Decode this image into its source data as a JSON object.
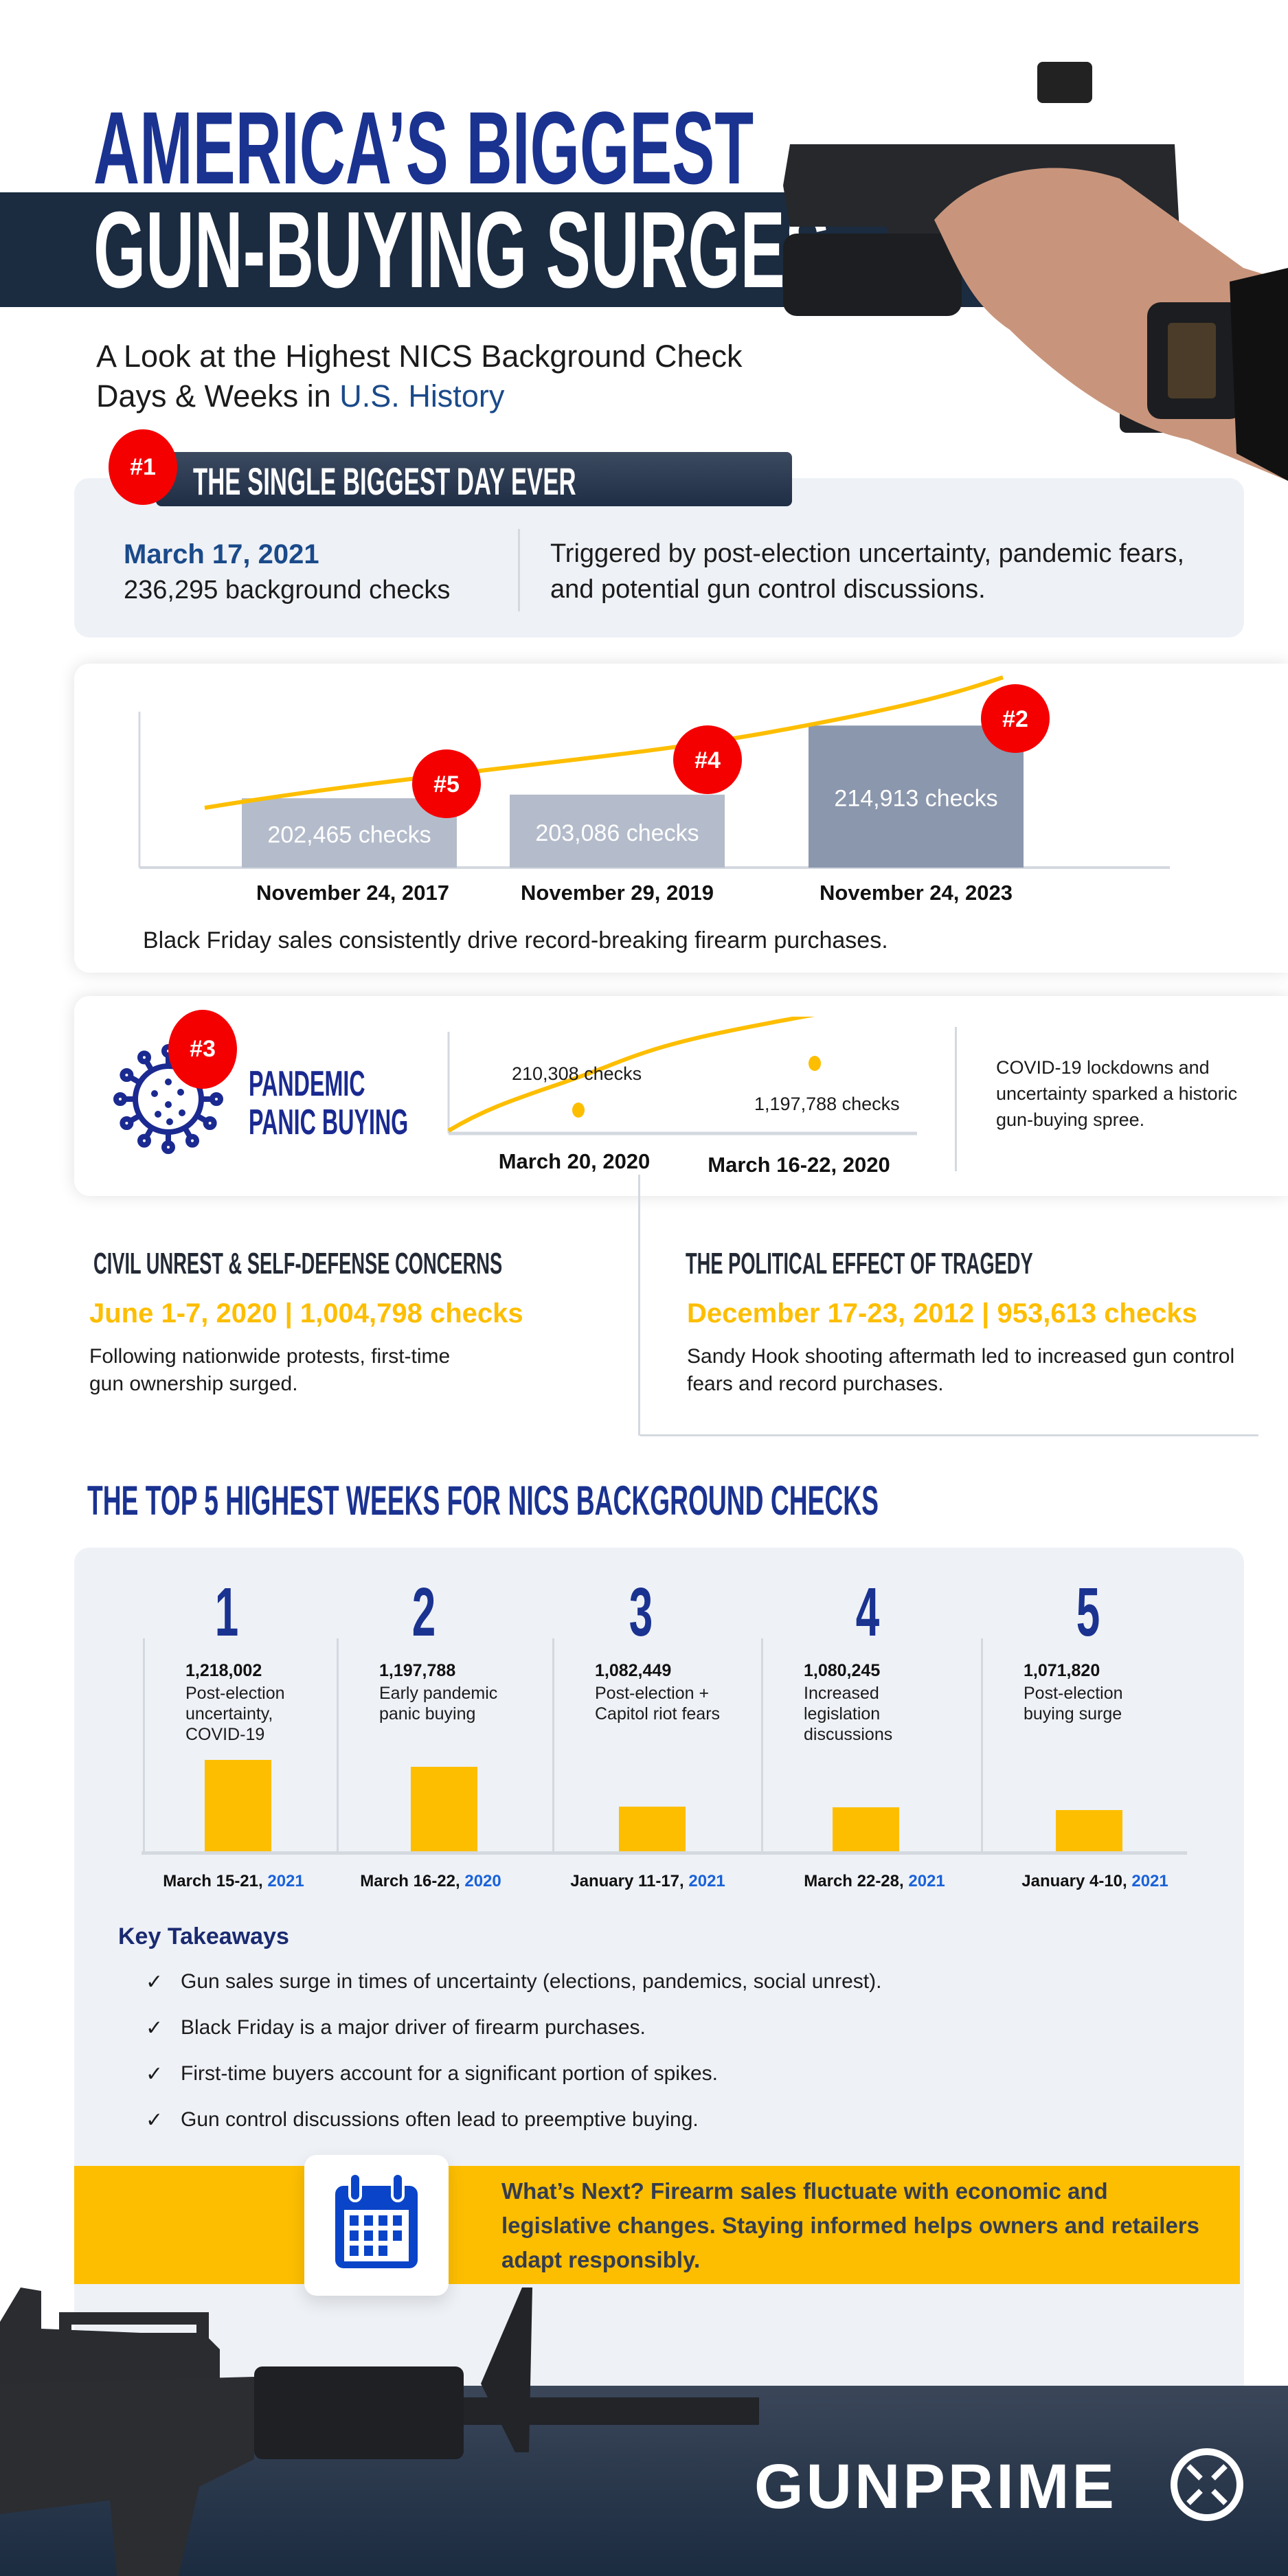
{
  "header": {
    "title_line1": "AMERICA’S BIGGEST",
    "title_line2": "GUN-BUYING SURGES",
    "subtitle_line1": "A Look at the Highest NICS Background Check",
    "subtitle_line2_prefix": "Days & Weeks in ",
    "subtitle_line2_highlight": "U.S. History"
  },
  "biggest_day": {
    "badge": "#1",
    "heading": "THE SINGLE BIGGEST DAY EVER",
    "date": "March 17, 2021",
    "checks": "236,295 background checks",
    "description": "Triggered by post-election uncertainty, pandemic fears, and potential gun control discussions."
  },
  "black_friday": {
    "bars": [
      {
        "badge": "#5",
        "label": "202,465  checks",
        "date": "November 24, 2017",
        "value": 202465
      },
      {
        "badge": "#4",
        "label": "203,086 checks",
        "date": "November 29, 2019",
        "value": 203086
      },
      {
        "badge": "#2",
        "label": "214,913 checks",
        "date": "November 24, 2023",
        "value": 214913
      }
    ],
    "caption": "Black Friday sales consistently drive record-breaking firearm purchases."
  },
  "pandemic": {
    "badge": "#3",
    "title_line1": "PANDEMIC",
    "title_line2": "PANIC BUYING",
    "point1_label": "210,308 checks",
    "point1_date": "March 20, 2020",
    "point2_label": "1,197,788 checks",
    "point2_date": "March 16-22, 2020",
    "description": "COVID-19 lockdowns and uncertainty sparked a historic gun-buying spree."
  },
  "civil_unrest": {
    "heading": "CIVIL UNREST & SELF-DEFENSE CONCERNS",
    "stat": "June 1-7, 2020 | 1,004,798 checks",
    "description": "Following nationwide protests, first-time gun ownership surged."
  },
  "tragedy": {
    "heading": "THE POLITICAL EFFECT OF TRAGEDY",
    "stat": "December 17-23, 2012 | 953,613 checks",
    "description": "Sandy Hook shooting aftermath led to increased gun control fears and record purchases."
  },
  "top5": {
    "title": "THE TOP 5 HIGHEST WEEKS FOR NICS BACKGROUND CHECKS",
    "weeks": [
      {
        "rank": "1",
        "value": "1,218,002",
        "desc": "Post-election uncertainty, COVID-19",
        "date": "March 15-21, ",
        "year": "2021",
        "checks": 1218002
      },
      {
        "rank": "2",
        "value": "1,197,788",
        "desc": "Early pandemic panic buying",
        "date": "March 16-22, ",
        "year": "2020",
        "checks": 1197788
      },
      {
        "rank": "3",
        "value": "1,082,449",
        "desc": "Post-election + Capitol riot fears",
        "date": "January 11-17, ",
        "year": "2021",
        "checks": 1082449
      },
      {
        "rank": "4",
        "value": "1,080,245",
        "desc": "Increased legislation discussions",
        "date": "March 22-28, ",
        "year": "2021",
        "checks": 1080245
      },
      {
        "rank": "5",
        "value": "1,071,820",
        "desc": "Post-election buying surge",
        "date": "January 4-10, ",
        "year": "2021",
        "checks": 1071820
      }
    ]
  },
  "takeaways": {
    "title": "Key Takeaways",
    "items": [
      "Gun sales surge in times of uncertainty (elections, pandemics, social unrest).",
      "Black Friday is a major driver of firearm purchases.",
      "First-time buyers account for a significant portion of spikes.",
      "Gun control discussions often lead to preemptive buying."
    ]
  },
  "whats_next": {
    "text": "What’s Next? Firearm sales fluctuate with economic and legislative changes. Staying informed helps owners and retailers adapt responsibly.",
    "icon": "calendar-icon"
  },
  "footer": {
    "logo": "GUNPRIME"
  },
  "colors": {
    "navy": "#1a3290",
    "dark_band": "#1b2b40",
    "accent_yellow": "#fdbe00",
    "badge_red": "#f40000",
    "card_bg": "#eef1f6"
  }
}
